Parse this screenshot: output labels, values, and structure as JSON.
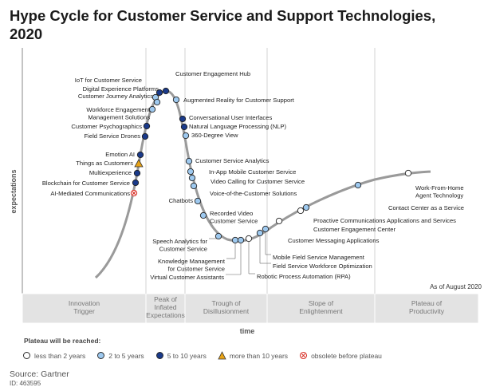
{
  "title": "Hype Cycle for Customer Service and Support Technologies, 2020",
  "chart_data": {
    "type": "hype-cycle",
    "ylabel": "expectations",
    "xlabel": "time",
    "as_of": "As of August 2020",
    "phases": [
      "Innovation Trigger",
      "Peak of Inflated Expectations",
      "Trough of Disillusionment",
      "Slope of Enlightenment",
      "Plateau of Productivity"
    ],
    "plateau_categories": [
      {
        "key": "lt2",
        "label": "less than 2 years",
        "color": "#ffffff"
      },
      {
        "key": "2to5",
        "label": "2 to 5 years",
        "color": "#9ec9ef"
      },
      {
        "key": "5to10",
        "label": "5 to 10 years",
        "color": "#1a3a8a"
      },
      {
        "key": "gt10",
        "label": "more than 10 years",
        "color": "#e8a317"
      },
      {
        "key": "obsolete",
        "label": "obsolete before plateau",
        "color": "#d9342b"
      }
    ],
    "items": [
      {
        "name": "AI-Mediated Communications",
        "t": 0.3,
        "cat": "obsolete"
      },
      {
        "name": "Blockchain for Customer Service",
        "t": 0.32,
        "cat": "5to10"
      },
      {
        "name": "Multiexperience",
        "t": 0.34,
        "cat": "5to10"
      },
      {
        "name": "Things as Customers",
        "t": 0.355,
        "cat": "gt10"
      },
      {
        "name": "Emotion AI",
        "t": 0.37,
        "cat": "5to10"
      },
      {
        "name": "Field Service Drones",
        "t": 0.405,
        "cat": "5to10"
      },
      {
        "name": "Customer Psychographics",
        "t": 0.415,
        "cat": "5to10"
      },
      {
        "name": "Workforce Engagement Management Solutions",
        "t": 0.43,
        "cat": "2to5"
      },
      {
        "name": "Customer Journey Analytics",
        "t": 0.445,
        "cat": "2to5"
      },
      {
        "name": "Digital Experience Platforms",
        "t": 0.46,
        "cat": "5to10"
      },
      {
        "name": "IoT for Customer Service",
        "t": 0.475,
        "cat": "2to5"
      },
      {
        "name": "Customer Engagement Hub",
        "t": 0.49,
        "cat": "5to10"
      },
      {
        "name": "Augmented Reality for Customer Support",
        "t": 0.5,
        "cat": "2to5"
      },
      {
        "name": "Conversational User Interfaces",
        "t": 0.52,
        "cat": "5to10"
      },
      {
        "name": "Natural Language Processing (NLP)",
        "t": 0.535,
        "cat": "5to10"
      },
      {
        "name": "360-Degree View",
        "t": 0.55,
        "cat": "2to5"
      },
      {
        "name": "Customer Service Analytics",
        "t": 0.575,
        "cat": "2to5"
      },
      {
        "name": "In-App Mobile Customer Service",
        "t": 0.585,
        "cat": "2to5"
      },
      {
        "name": "Video Calling for Customer Service",
        "t": 0.595,
        "cat": "2to5"
      },
      {
        "name": "Voice-of-the-Customer Solutions",
        "t": 0.605,
        "cat": "2to5"
      },
      {
        "name": "Chatbots",
        "t": 0.62,
        "cat": "2to5"
      },
      {
        "name": "Recorded Video Customer Service",
        "t": 0.64,
        "cat": "2to5"
      },
      {
        "name": "Speech Analytics for Customer Service",
        "t": 0.68,
        "cat": "2to5"
      },
      {
        "name": "Knowledge Management for Customer Service",
        "t": 0.705,
        "cat": "2to5"
      },
      {
        "name": "Virtual Customer Assistants",
        "t": 0.72,
        "cat": "2to5"
      },
      {
        "name": "Robotic Process Automation (RPA)",
        "t": 0.735,
        "cat": "lt2"
      },
      {
        "name": "Field Service Workforce Optimization",
        "t": 0.76,
        "cat": "2to5"
      },
      {
        "name": "Mobile Field Service Management",
        "t": 0.77,
        "cat": "2to5"
      },
      {
        "name": "Customer Messaging Applications",
        "t": 0.8,
        "cat": "lt2"
      },
      {
        "name": "Customer Engagement Center",
        "t": 0.83,
        "cat": "lt2"
      },
      {
        "name": "Proactive Communications Applications and Services",
        "t": 0.85,
        "cat": "2to5"
      },
      {
        "name": "Contact Center as a Service",
        "t": 0.9,
        "cat": "2to5"
      },
      {
        "name": "Work-From-Home Agent Technology",
        "t": 0.95,
        "cat": "lt2"
      }
    ]
  },
  "legend": {
    "title": "Plateau will be reached:"
  },
  "source": "Source: Gartner",
  "id": "ID: 463595"
}
